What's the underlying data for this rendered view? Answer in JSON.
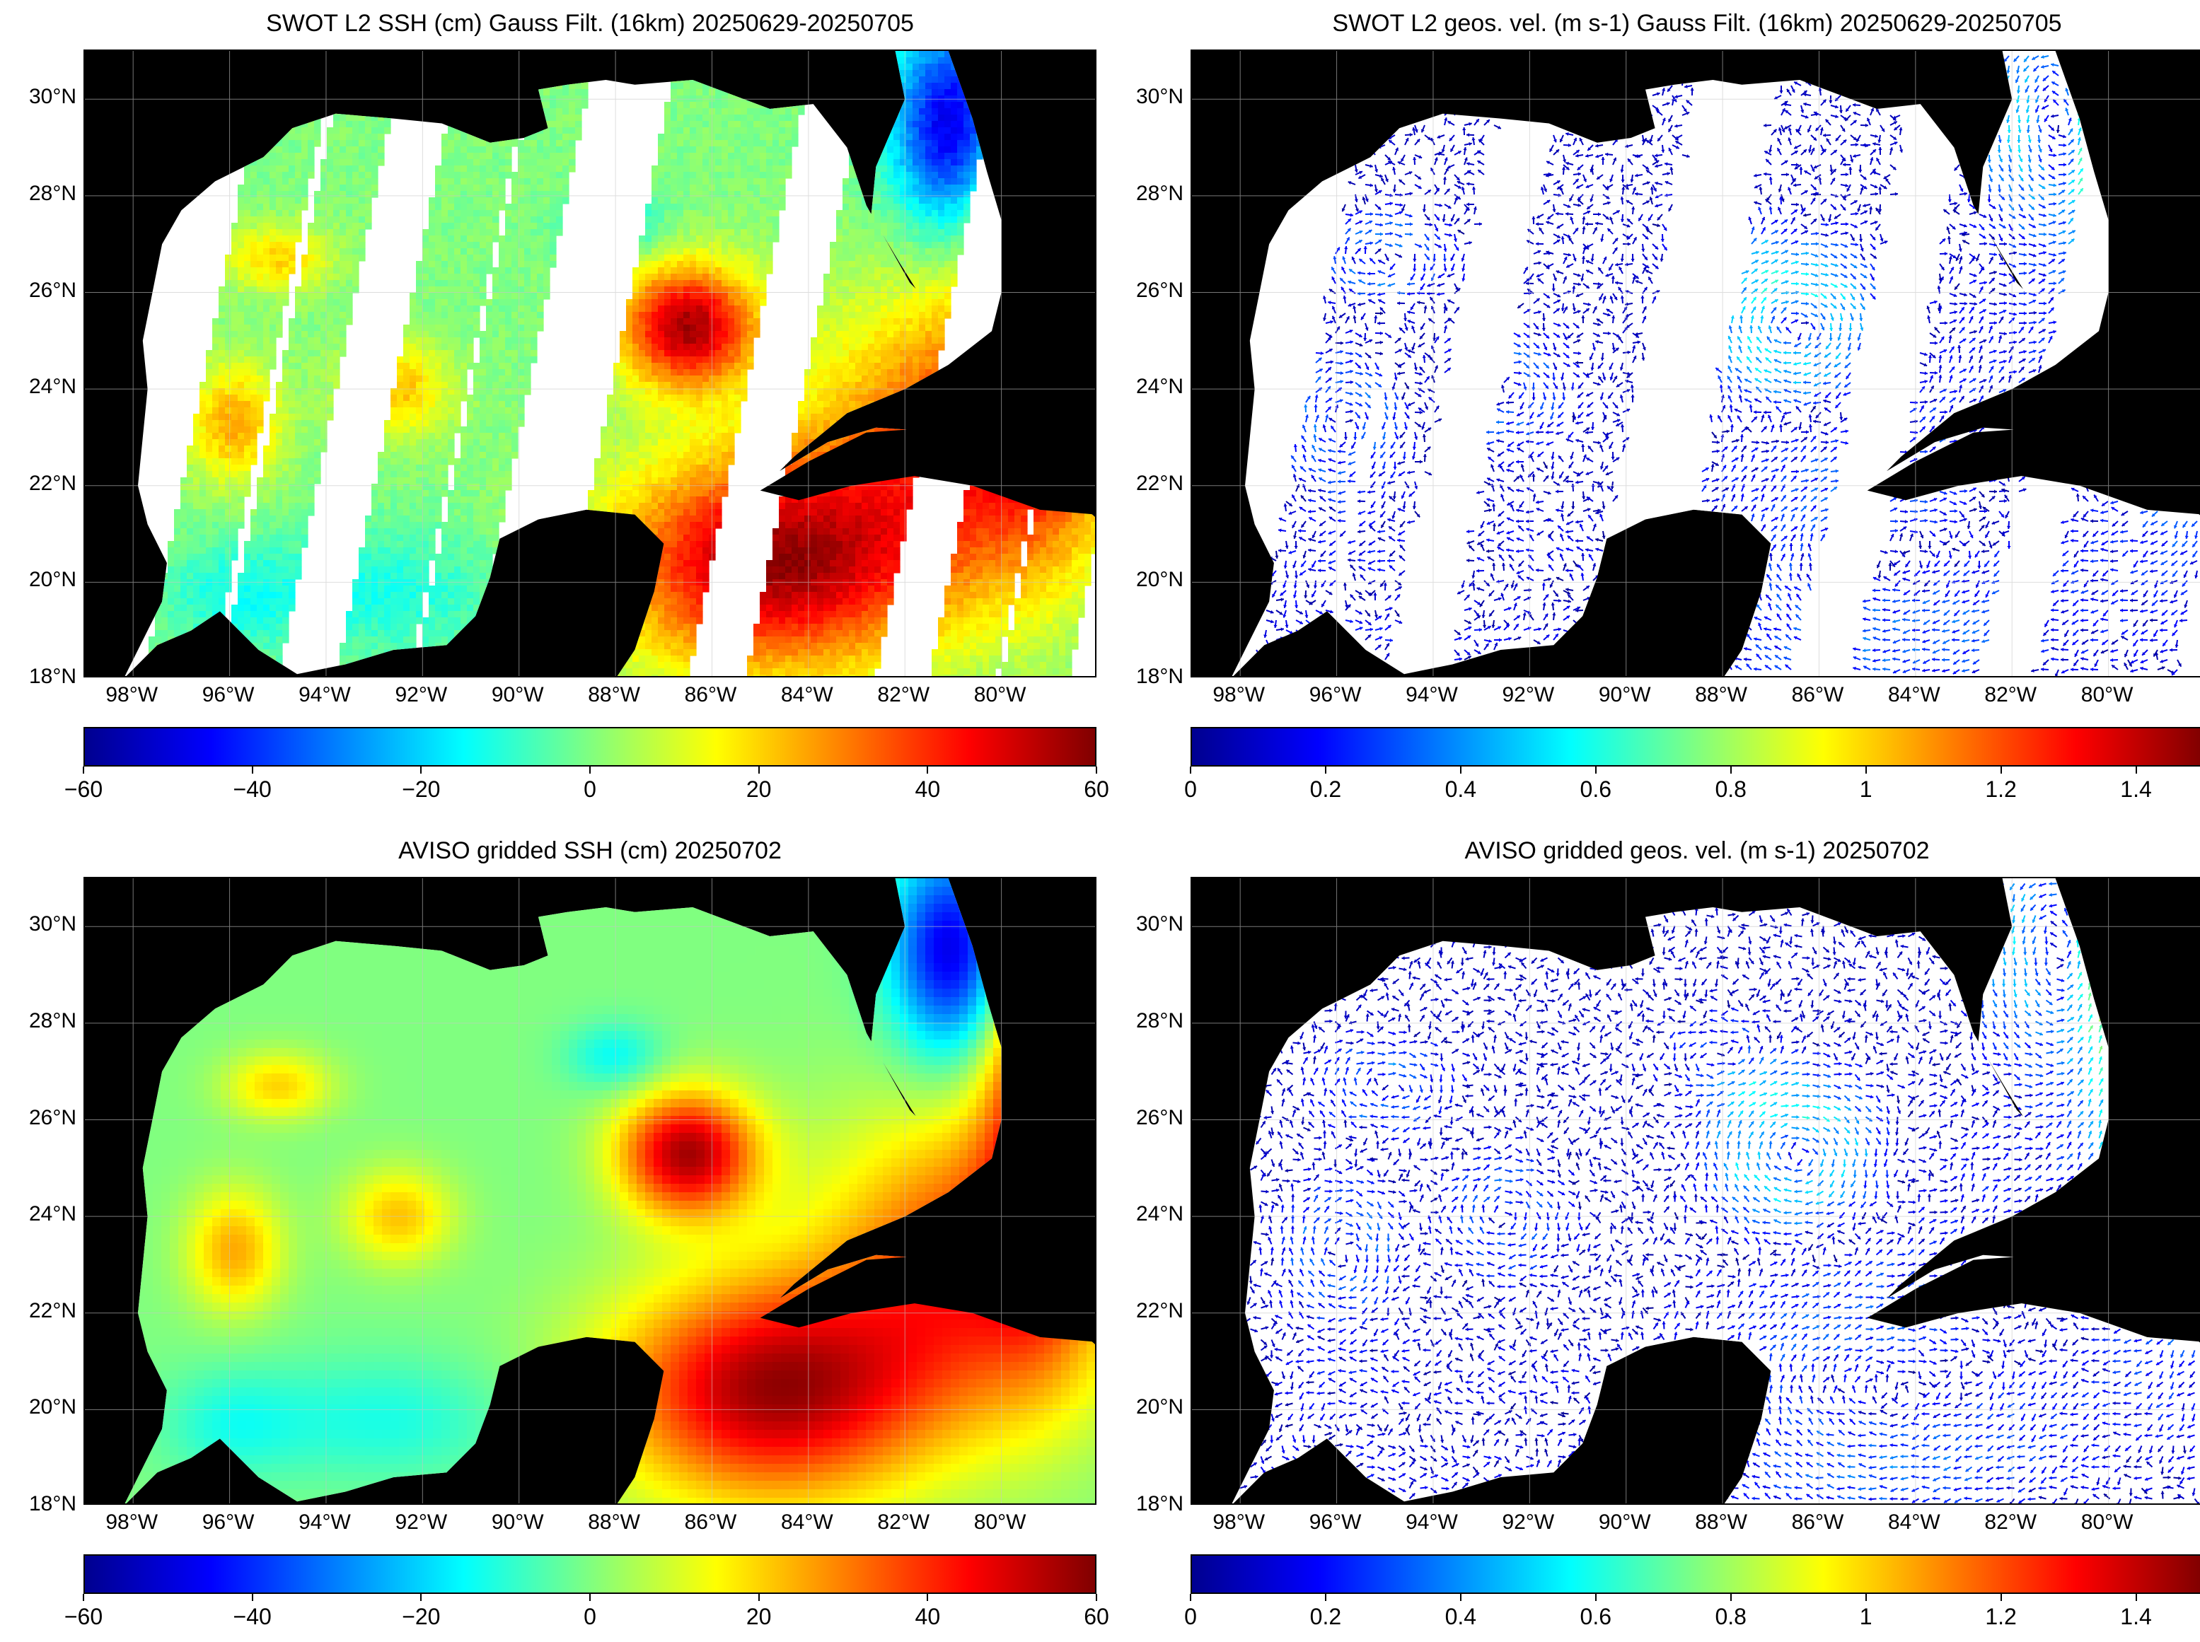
{
  "panels": [
    {
      "id": "swot-ssh",
      "title": "SWOT L2 SSH (cm) Gauss Filt. (16km) 20250629-20250705",
      "kind": "ssh-swaths",
      "colorbar": {
        "ticks": [
          "−60",
          "−40",
          "−20",
          "0",
          "20",
          "40",
          "60"
        ],
        "min": -60,
        "max": 60
      }
    },
    {
      "id": "swot-vel",
      "title": "SWOT L2 geos. vel. (m s-1) Gauss Filt. (16km) 20250629-20250705",
      "kind": "vel-swaths",
      "colorbar": {
        "ticks": [
          "0",
          "0.2",
          "0.4",
          "0.6",
          "0.8",
          "1",
          "1.2",
          "1.4"
        ],
        "min": 0,
        "max": 1.5
      }
    },
    {
      "id": "aviso-ssh",
      "title": "AVISO gridded SSH (cm) 20250702",
      "kind": "ssh-grid",
      "colorbar": {
        "ticks": [
          "−60",
          "−40",
          "−20",
          "0",
          "20",
          "40",
          "60"
        ],
        "min": -60,
        "max": 60
      }
    },
    {
      "id": "aviso-vel",
      "title": "AVISO gridded geos. vel. (m s-1)  20250702",
      "kind": "vel-grid",
      "colorbar": {
        "ticks": [
          "0",
          "0.2",
          "0.4",
          "0.6",
          "0.8",
          "1",
          "1.2",
          "1.4"
        ],
        "min": 0,
        "max": 1.5
      }
    }
  ],
  "axes": {
    "lat_labels": [
      "30°N",
      "28°N",
      "26°N",
      "24°N",
      "22°N",
      "20°N",
      "18°N"
    ],
    "lon_labels": [
      "98°W",
      "96°W",
      "94°W",
      "92°W",
      "90°W",
      "88°W",
      "86°W",
      "84°W",
      "82°W",
      "80°W"
    ],
    "lat_range": [
      18,
      31
    ],
    "lon_range": [
      -99,
      -78
    ]
  },
  "colors": {
    "land": "#000000",
    "ocean_nodata": "#ffffff",
    "grid": "#c8c8c8"
  }
}
